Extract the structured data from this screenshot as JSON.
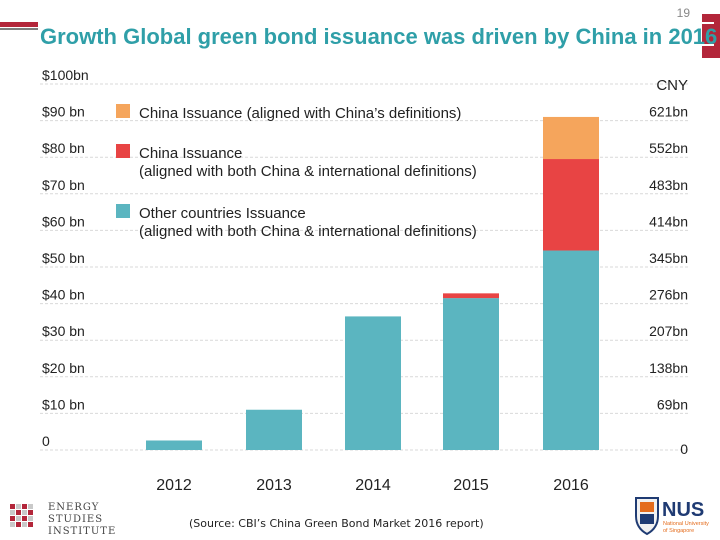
{
  "slide": {
    "number": "19",
    "source": "(Source: CBI’s China Green Bond Market 2016 report)",
    "left_logo_lines": [
      "ENERGY",
      "STUDIES",
      "INSTITUTE"
    ],
    "right_logo_text": "NUS",
    "right_logo_sub": [
      "National University",
      "of Singapore"
    ]
  },
  "chart_data": {
    "type": "bar",
    "stacked": true,
    "title": "Growth Global green bond issuance was driven by China in 2016",
    "categories": [
      "2012",
      "2013",
      "2014",
      "2015",
      "2016"
    ],
    "series": [
      {
        "name": "Other countries Issuance\n(aligned with both China & international definitions)",
        "color": "#5bb5c0",
        "values": [
          2.6,
          11.0,
          36.5,
          41.5,
          54.5
        ]
      },
      {
        "name": "China Issuance\n(aligned with both China & international definitions)",
        "color": "#e84444",
        "values": [
          0,
          0,
          0,
          1.3,
          25.0
        ]
      },
      {
        "name": "China Issuance (aligned with China’s definitions)",
        "color": "#f5a55c",
        "values": [
          0,
          0,
          0,
          0,
          11.5
        ]
      }
    ],
    "ylim": [
      0,
      100
    ],
    "left_ticks": [
      "0",
      "$10 bn",
      "$20 bn",
      "$30 bn",
      "$40 bn",
      "$50 bn",
      "$60 bn",
      "$70 bn",
      "$80 bn",
      "$90 bn",
      "$100bn"
    ],
    "right_ticks": [
      "0",
      "69bn",
      "138bn",
      "207bn",
      "276bn",
      "345bn",
      "414bn",
      "483bn",
      "552bn",
      "621bn"
    ],
    "right_axis_label": "CNY",
    "grid": true,
    "legend_position": "top-left"
  }
}
